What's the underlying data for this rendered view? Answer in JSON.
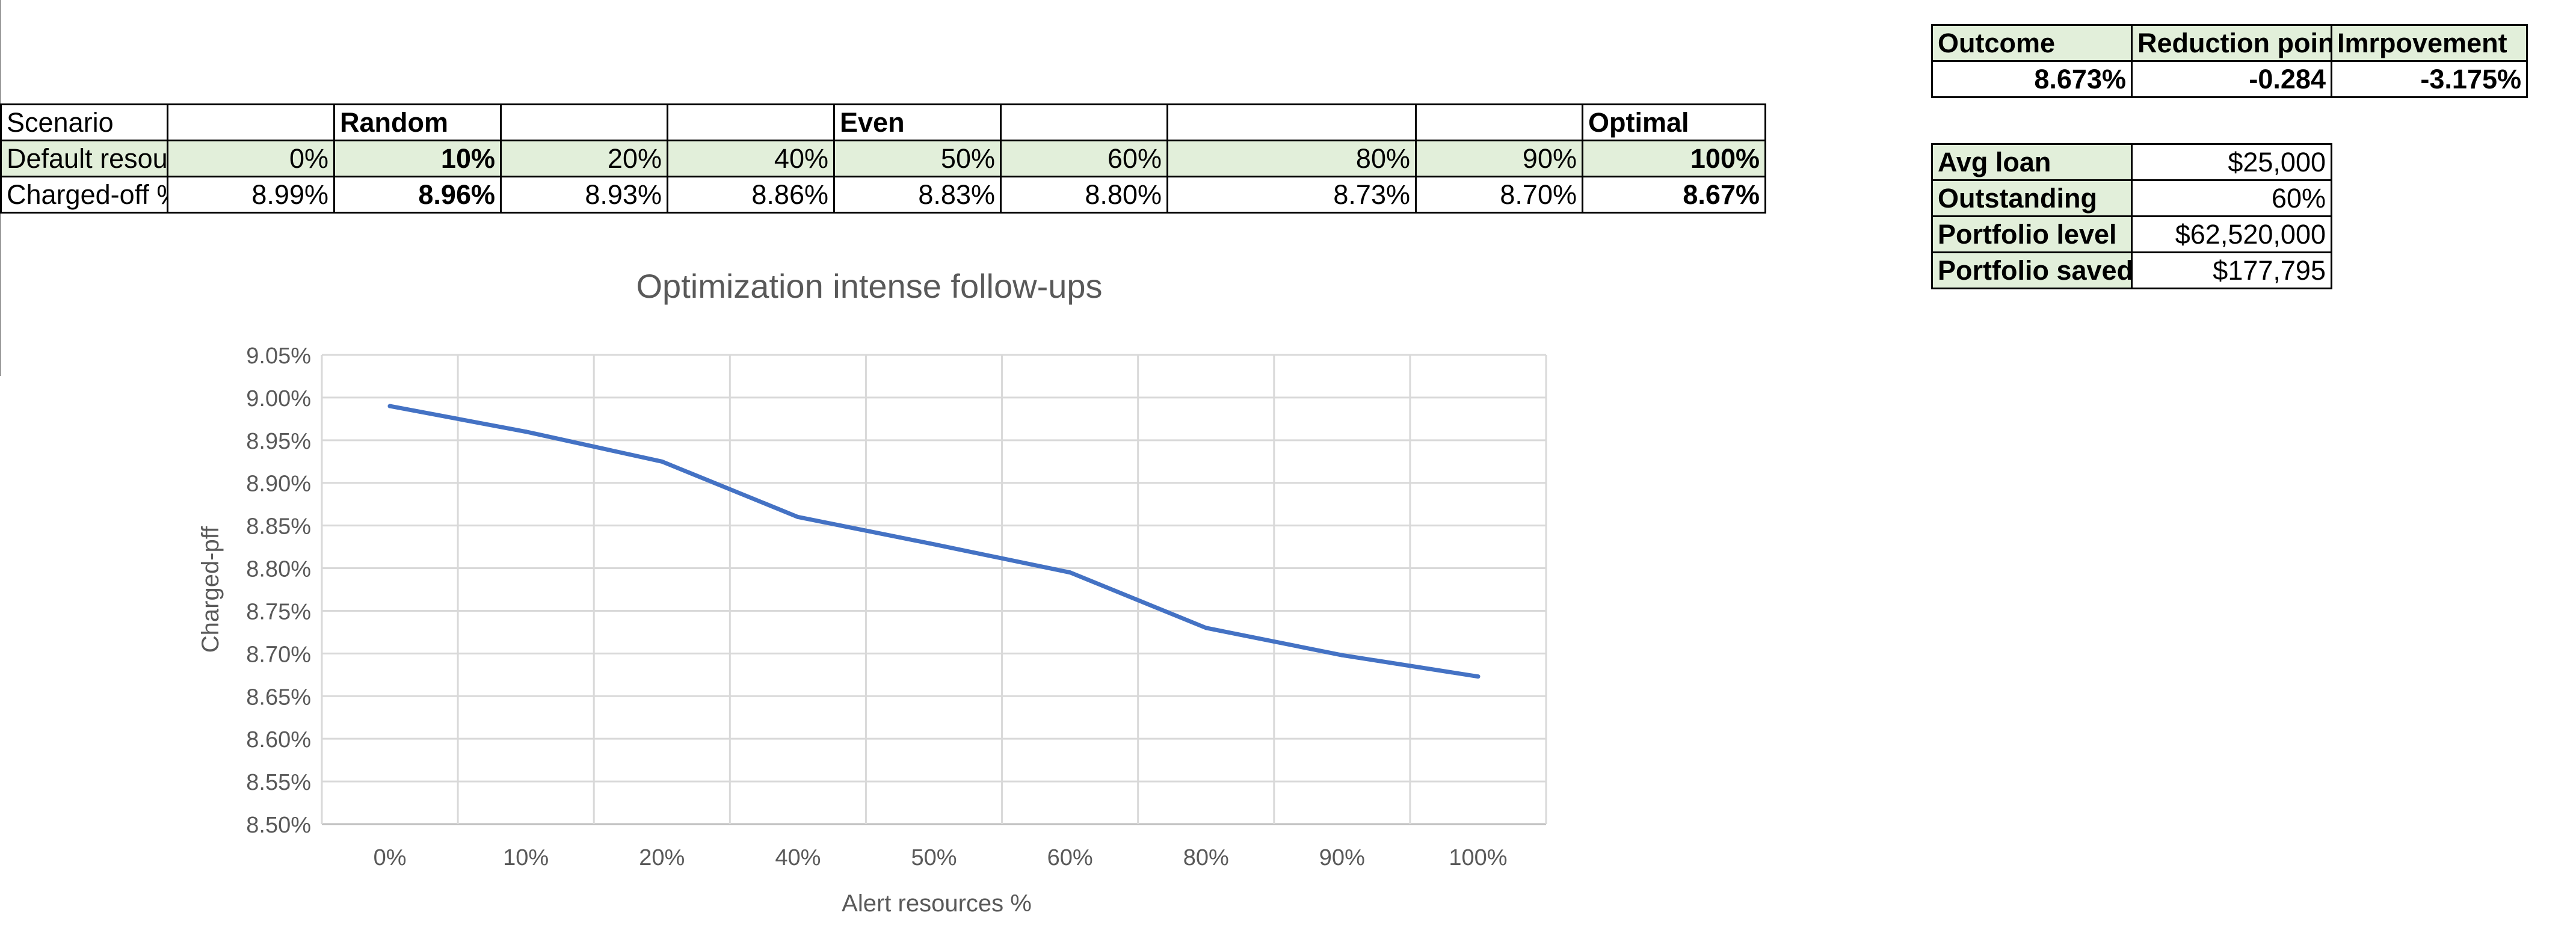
{
  "scenario_table": {
    "rows": [
      [
        "Scenario",
        "",
        "Random",
        "",
        "",
        "Even",
        "",
        "",
        "",
        "Optimal"
      ],
      [
        "Default resou",
        "0%",
        "10%",
        "20%",
        "40%",
        "50%",
        "60%",
        "80%",
        "90%",
        "100%"
      ],
      [
        "Charged-off %",
        "8.99%",
        "8.96%",
        "8.93%",
        "8.86%",
        "8.83%",
        "8.80%",
        "8.73%",
        "8.70%",
        "8.67%"
      ]
    ]
  },
  "outcome_table": {
    "headers": [
      "Outcome",
      "Reduction poin",
      "Imrpovement"
    ],
    "values": [
      "8.673%",
      "-0.284",
      "-3.175%"
    ]
  },
  "loan_table": {
    "rows": [
      [
        "Avg loan",
        "$25,000"
      ],
      [
        "Outstanding",
        "60%"
      ],
      [
        "Portfolio level",
        "$62,520,000"
      ],
      [
        "Portfolio saved",
        "$177,795"
      ]
    ]
  },
  "colors": {
    "line": "#4472c4",
    "grid": "#d9d9d9",
    "header_fill": "#e2efda"
  },
  "chart_data": {
    "type": "line",
    "title": "Optimization intense follow-ups",
    "xlabel": "Alert resources %",
    "ylabel": "Charged-pff",
    "categories": [
      "0%",
      "10%",
      "20%",
      "40%",
      "50%",
      "60%",
      "80%",
      "90%",
      "100%"
    ],
    "series": [
      {
        "name": "Charged-off %",
        "values": [
          8.99,
          8.96,
          8.925,
          8.86,
          8.828,
          8.795,
          8.73,
          8.698,
          8.673
        ]
      }
    ],
    "ylim": [
      8.5,
      9.05
    ],
    "yticks": [
      "8.50%",
      "8.55%",
      "8.60%",
      "8.65%",
      "8.70%",
      "8.75%",
      "8.80%",
      "8.85%",
      "8.90%",
      "8.95%",
      "9.00%",
      "9.05%"
    ],
    "grid": true
  }
}
